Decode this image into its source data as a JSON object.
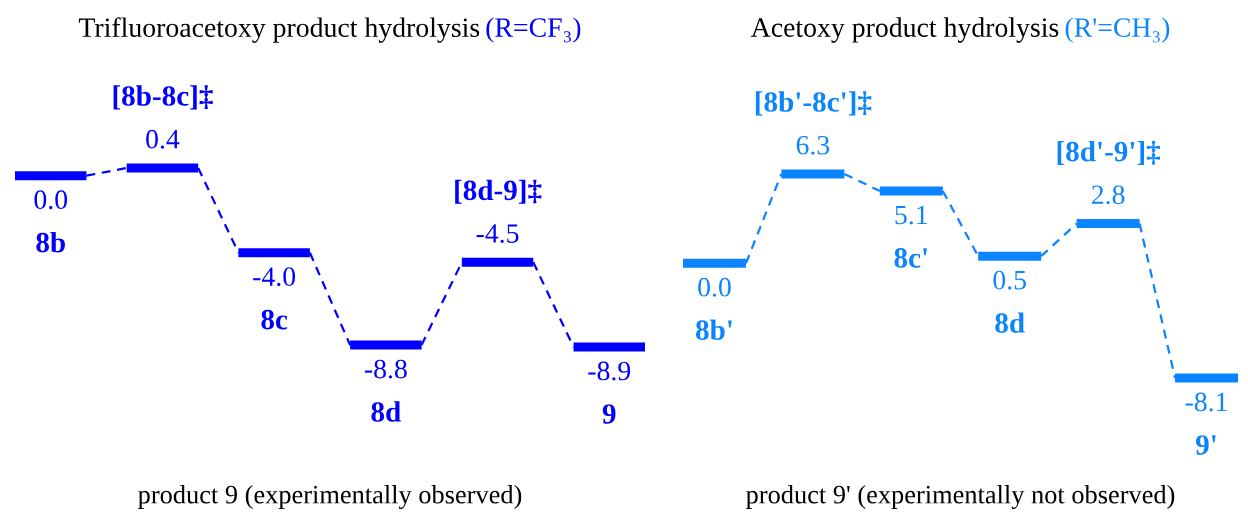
{
  "chart_data": [
    {
      "type": "other",
      "title": "Trifluoroacetoxy product hydrolysis",
      "subtitle": "(R=CF₃)",
      "categories": [
        "8b",
        "[8b-8c]‡",
        "8c",
        "8d",
        "[8d-9]‡",
        "9"
      ],
      "values": [
        0.0,
        0.4,
        -4.0,
        -8.8,
        -4.5,
        -8.9
      ],
      "value_labels": [
        "0.0",
        "0.4",
        "-4.0",
        "-8.8",
        "-4.5",
        "-8.9"
      ],
      "color": "#0000ff",
      "annotations": [
        "product 9 (experimentally observed)"
      ]
    },
    {
      "type": "other",
      "title": "Acetoxy product hydrolysis",
      "subtitle": "(R'=CH₃)",
      "categories": [
        "8b'",
        "[8b'-8c']‡",
        "8c'",
        "8d",
        "[8d'-9']‡",
        "9'"
      ],
      "values": [
        0.0,
        6.3,
        5.1,
        0.5,
        2.8,
        -8.1
      ],
      "value_labels": [
        "0.0",
        "6.3",
        "5.1",
        "0.5",
        "2.8",
        "-8.1"
      ],
      "color": "#0a84ff",
      "annotations": [
        "product 9' (experimentally not observed)"
      ]
    }
  ]
}
